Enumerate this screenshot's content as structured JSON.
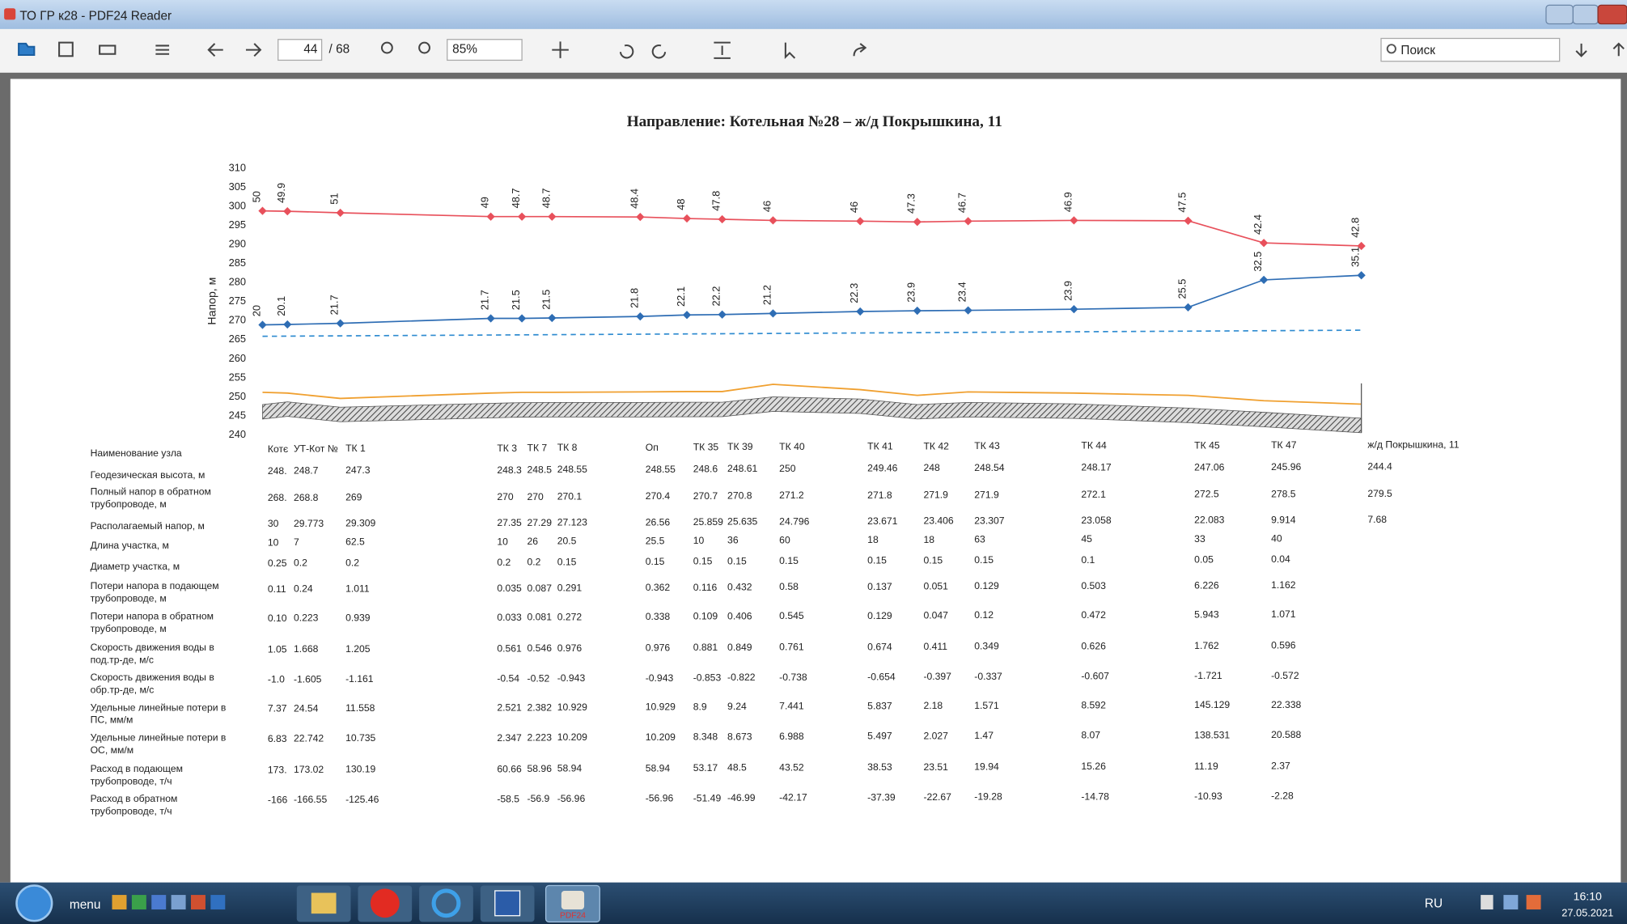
{
  "window": {
    "title": "ТО ГР к28 - PDF24 Reader"
  },
  "toolbar": {
    "page": "44",
    "page_total": "/ 68",
    "zoom": "85%",
    "search": "Поиск"
  },
  "document": {
    "chart": {
      "type": "line",
      "title": "Направление: Котельная №28 – ж/д Покрышкина, 11",
      "y_label": "Напор, м",
      "ylim": [
        240,
        310
      ],
      "yticks": [
        240,
        245,
        250,
        255,
        260,
        265,
        270,
        275,
        280,
        285,
        290,
        295,
        300,
        305,
        310
      ],
      "series": [
        {
          "color": "#e8505b",
          "values": [
            298.8,
            298.7,
            298.3,
            297.3,
            297.3,
            297.3,
            297.2,
            296.8,
            296.6,
            296.3,
            296.1,
            295.9,
            296.1,
            296.3,
            296.2,
            290.4,
            289.6
          ],
          "annotations": [
            "50",
            "49.9",
            "51",
            "49",
            "48.7",
            "48.7",
            "48.4",
            "48",
            "47.8",
            "46",
            "46",
            "47.3",
            "46.7",
            "46.9",
            "47.5",
            "42.4",
            "42.8"
          ]
        },
        {
          "color": "#2e6db4",
          "values": [
            268.9,
            269.0,
            269.3,
            270.6,
            270.6,
            270.7,
            271.1,
            271.5,
            271.6,
            271.9,
            272.4,
            272.6,
            272.7,
            273.0,
            273.5,
            280.7,
            281.9
          ],
          "annotations": [
            "20",
            "20.1",
            "21.7",
            "21.7",
            "21.5",
            "21.5",
            "21.8",
            "22.1",
            "22.2",
            "21.2",
            "22.3",
            "23.9",
            "23.4",
            "23.9",
            "25.5",
            "32.5",
            "35.1"
          ]
        }
      ],
      "reference_line": {
        "color": "#2e8bd0",
        "values": [
          265.9,
          267.5
        ]
      },
      "ground_cover": {
        "color": "#f0a030",
        "values": [
          251.2,
          251.0,
          249.6,
          251.0,
          251.2,
          251.2,
          251.3,
          251.4,
          251.4,
          253.3,
          251.9,
          250.4,
          251.3,
          251.0,
          250.4,
          249.0,
          248.1
        ]
      },
      "ground": {
        "color": "#555555",
        "values": [
          248,
          248.7,
          247.3,
          248.3,
          248.5,
          248.55,
          248.55,
          248.6,
          248.61,
          250,
          249.46,
          248,
          248.54,
          248.17,
          247.06,
          245.96,
          244.4
        ]
      }
    },
    "table": {
      "rows": [
        {
          "label": [
            "Наименование узла"
          ],
          "cells": [
            "Котє",
            "УТ-Кот №",
            "ТК 1",
            "ТК 3",
            "ТК 7",
            "ТК 8",
            "Оп",
            "ТК 35",
            "ТК 39",
            "ТК 40",
            "ТК 41",
            "ТК 42",
            "ТК 43",
            "ТК 44",
            "ТК 45",
            "ТК 47",
            "ж/д Покрышкина, 11"
          ]
        },
        {
          "label": [
            "Геодезическая высота, м"
          ],
          "cells": [
            "248.",
            "248.7",
            "247.3",
            "248.3",
            "248.5",
            "248.55",
            "248.55",
            "248.6",
            "248.61",
            "250",
            "249.46",
            "248",
            "248.54",
            "248.17",
            "247.06",
            "245.96",
            "244.4"
          ]
        },
        {
          "label": [
            "Полный напор в обратном",
            "трубопроводе, м"
          ],
          "cells": [
            "268.",
            "268.8",
            "269",
            "270",
            "270",
            "270.1",
            "270.4",
            "270.7",
            "270.8",
            "271.2",
            "271.8",
            "271.9",
            "271.9",
            "272.1",
            "272.5",
            "278.5",
            "279.5"
          ]
        },
        {
          "label": [
            "Располагаемый напор, м"
          ],
          "cells": [
            "30",
            "29.773",
            "29.309",
            "27.35",
            "27.29",
            "27.123",
            "26.56",
            "25.859",
            "25.635",
            "24.796",
            "23.671",
            "23.406",
            "23.307",
            "23.058",
            "22.083",
            "9.914",
            "7.68"
          ]
        },
        {
          "label": [
            "Длина участка, м"
          ],
          "cells": [
            "10",
            "7",
            "62.5",
            "10",
            "26",
            "20.5",
            "25.5",
            "10",
            "36",
            "60",
            "18",
            "18",
            "63",
            "45",
            "33",
            "40"
          ]
        },
        {
          "label": [
            "Диаметр участка, м"
          ],
          "cells": [
            "0.25",
            "0.2",
            "0.2",
            "0.2",
            "0.2",
            "0.15",
            "0.15",
            "0.15",
            "0.15",
            "0.15",
            "0.15",
            "0.15",
            "0.15",
            "0.1",
            "0.05",
            "0.04"
          ]
        },
        {
          "label": [
            "Потери напора в подающем",
            "трубопроводе, м"
          ],
          "cells": [
            "0.11",
            "0.24",
            "1.011",
            "0.035",
            "0.087",
            "0.291",
            "0.362",
            "0.116",
            "0.432",
            "0.58",
            "0.137",
            "0.051",
            "0.129",
            "0.503",
            "6.226",
            "1.162"
          ]
        },
        {
          "label": [
            "Потери напора в обратном",
            "трубопроводе, м"
          ],
          "cells": [
            "0.10",
            "0.223",
            "0.939",
            "0.033",
            "0.081",
            "0.272",
            "0.338",
            "0.109",
            "0.406",
            "0.545",
            "0.129",
            "0.047",
            "0.12",
            "0.472",
            "5.943",
            "1.071"
          ]
        },
        {
          "label": [
            "Скорость движения воды в",
            "под.тр-де, м/с"
          ],
          "cells": [
            "1.05",
            "1.668",
            "1.205",
            "0.561",
            "0.546",
            "0.976",
            "0.976",
            "0.881",
            "0.849",
            "0.761",
            "0.674",
            "0.411",
            "0.349",
            "0.626",
            "1.762",
            "0.596"
          ]
        },
        {
          "label": [
            "Скорость движения воды в",
            "обр.тр-де, м/с"
          ],
          "cells": [
            "-1.0",
            "-1.605",
            "-1.161",
            "-0.54",
            "-0.52",
            "-0.943",
            "-0.943",
            "-0.853",
            "-0.822",
            "-0.738",
            "-0.654",
            "-0.397",
            "-0.337",
            "-0.607",
            "-1.721",
            "-0.572"
          ]
        },
        {
          "label": [
            "Удельные линейные потери в",
            "ПС, мм/м"
          ],
          "cells": [
            "7.37",
            "24.54",
            "11.558",
            "2.521",
            "2.382",
            "10.929",
            "10.929",
            "8.9",
            "9.24",
            "7.441",
            "5.837",
            "2.18",
            "1.571",
            "8.592",
            "145.129",
            "22.338"
          ]
        },
        {
          "label": [
            "Удельные линейные потери в",
            "ОС, мм/м"
          ],
          "cells": [
            "6.83",
            "22.742",
            "10.735",
            "2.347",
            "2.223",
            "10.209",
            "10.209",
            "8.348",
            "8.673",
            "6.988",
            "5.497",
            "2.027",
            "1.47",
            "8.07",
            "138.531",
            "20.588"
          ]
        },
        {
          "label": [
            "Расход в подающем",
            "трубопроводе, т/ч"
          ],
          "cells": [
            "173.",
            "173.02",
            "130.19",
            "60.66",
            "58.96",
            "58.94",
            "58.94",
            "53.17",
            "48.5",
            "43.52",
            "38.53",
            "23.51",
            "19.94",
            "15.26",
            "11.19",
            "2.37"
          ]
        },
        {
          "label": [
            "Расход в обратном",
            "трубопроводе, т/ч"
          ],
          "cells": [
            "-166",
            "-166.55",
            "-125.46",
            "-58.5",
            "-56.9",
            "-56.96",
            "-56.96",
            "-51.49",
            "-46.99",
            "-42.17",
            "-37.39",
            "-22.67",
            "-19.28",
            "-14.78",
            "-10.93",
            "-2.28"
          ]
        }
      ]
    }
  },
  "taskbar": {
    "menu": "menu",
    "app": "PDF24",
    "lang": "RU",
    "time": "16:10",
    "date": "27.05.2021"
  }
}
